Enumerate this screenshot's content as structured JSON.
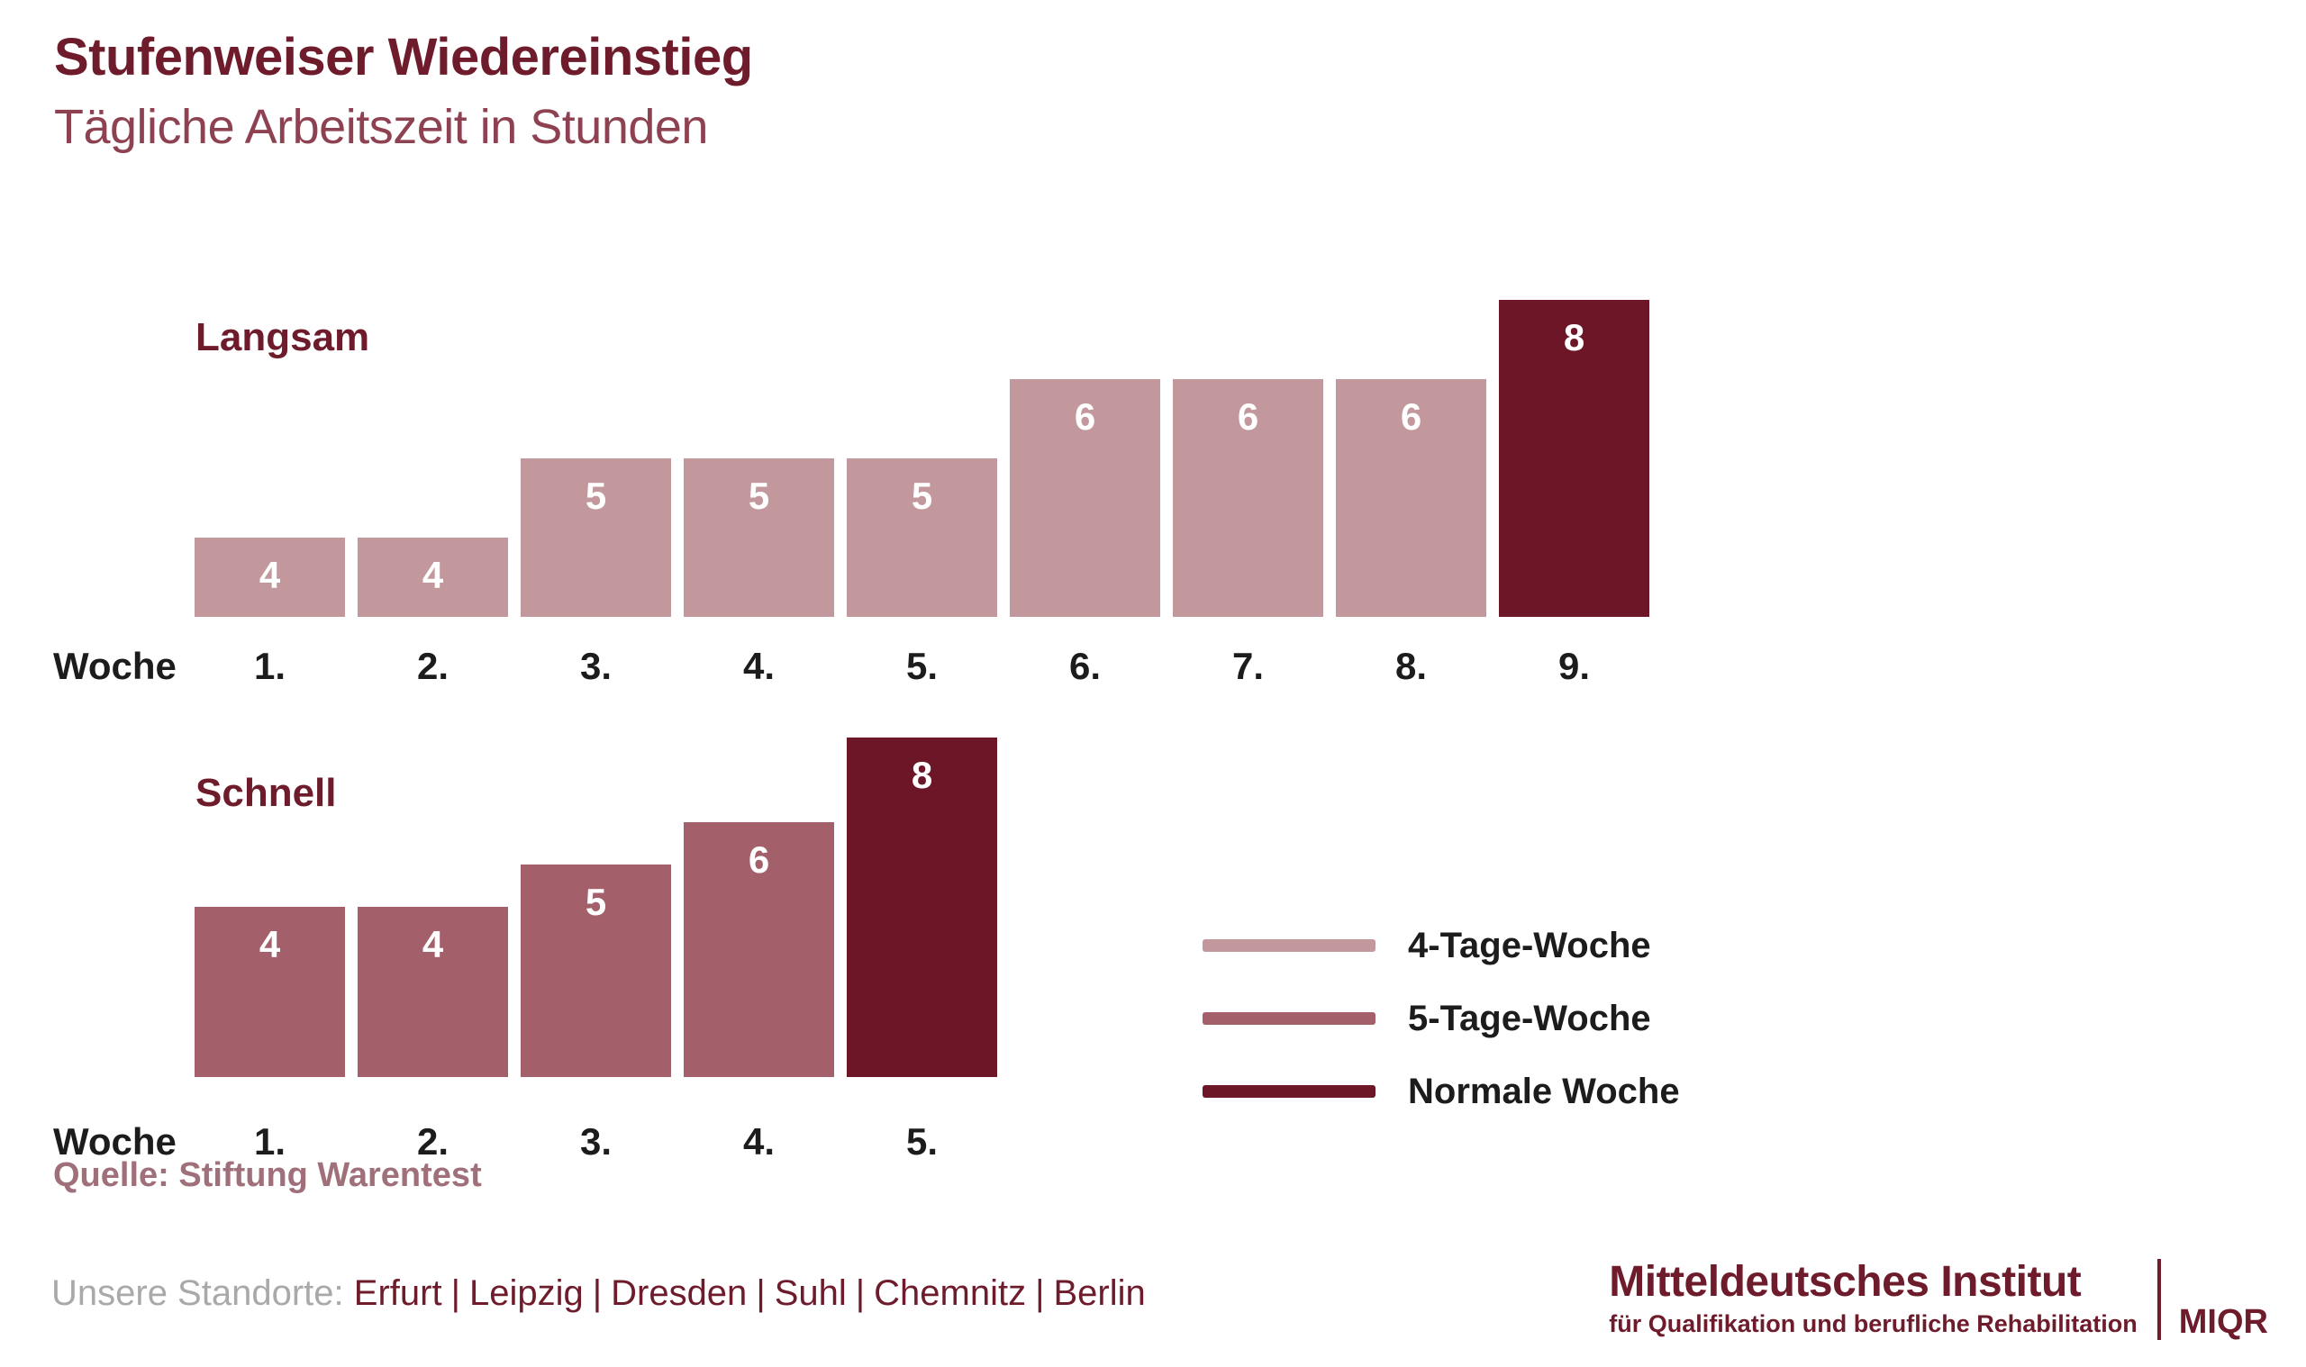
{
  "header": {
    "title": "Stufenweiser Wiedereinstieg",
    "subtitle": "Tägliche Arbeitszeit in Stunden"
  },
  "chart_data": [
    {
      "type": "bar",
      "title": "Langsam",
      "x_axis_label": "Woche",
      "categories": [
        "1.",
        "2.",
        "3.",
        "4.",
        "5.",
        "6.",
        "7.",
        "8.",
        "9."
      ],
      "values": [
        4,
        4,
        5,
        5,
        5,
        6,
        6,
        6,
        8
      ],
      "series_keys": [
        "4-Tage-Woche",
        "4-Tage-Woche",
        "4-Tage-Woche",
        "4-Tage-Woche",
        "4-Tage-Woche",
        "4-Tage-Woche",
        "4-Tage-Woche",
        "4-Tage-Woche",
        "Normale Woche"
      ],
      "value_labels_shown": true,
      "ylim": [
        0,
        8
      ],
      "bar_scaling": "equal-steps",
      "grid": false
    },
    {
      "type": "bar",
      "title": "Schnell",
      "x_axis_label": "Woche",
      "categories": [
        "1.",
        "2.",
        "3.",
        "4.",
        "5."
      ],
      "values": [
        4,
        4,
        5,
        6,
        8
      ],
      "series_keys": [
        "5-Tage-Woche",
        "5-Tage-Woche",
        "5-Tage-Woche",
        "5-Tage-Woche",
        "Normale Woche"
      ],
      "value_labels_shown": true,
      "ylim": [
        0,
        8
      ],
      "bar_scaling": "proportional",
      "grid": false
    }
  ],
  "legend": {
    "position": "right-middle",
    "items": [
      {
        "label": "4-Tage-Woche",
        "color": "#c2989c"
      },
      {
        "label": "5-Tage-Woche",
        "color": "#a4606a"
      },
      {
        "label": "Normale Woche",
        "color": "#6c1627"
      }
    ]
  },
  "source": {
    "text": "Quelle: Stiftung Warentest"
  },
  "footer": {
    "locations_label": "Unsere Standorte:",
    "locations": [
      "Erfurt",
      "Leipzig",
      "Dresden",
      "Suhl",
      "Chemnitz",
      "Berlin"
    ],
    "separator": "|"
  },
  "logo": {
    "line1": "Mitteldeutsches Institut",
    "line2": "für Qualifikation und berufliche Rehabilitation",
    "abbr": "MIQR"
  },
  "colors": {
    "accent_dark": "#6e1b2b",
    "subtitle": "#8e4251",
    "source": "#a0707a",
    "gray": "#a9a9a9",
    "text": "#1c1c1c",
    "background": "#ffffff"
  }
}
